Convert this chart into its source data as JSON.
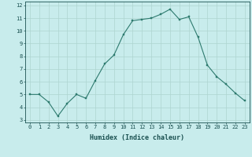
{
  "x": [
    0,
    1,
    2,
    3,
    4,
    5,
    6,
    7,
    8,
    9,
    10,
    11,
    12,
    13,
    14,
    15,
    16,
    17,
    18,
    19,
    20,
    21,
    22,
    23
  ],
  "y": [
    5.0,
    5.0,
    4.4,
    3.3,
    4.3,
    5.0,
    4.7,
    6.1,
    7.4,
    8.1,
    9.7,
    10.8,
    10.9,
    11.0,
    11.3,
    11.7,
    10.9,
    11.1,
    9.5,
    7.3,
    6.4,
    5.8,
    5.1,
    4.5
  ],
  "xlabel": "Humidex (Indice chaleur)",
  "xlim": [
    -0.5,
    23.5
  ],
  "ylim": [
    2.8,
    12.3
  ],
  "yticks": [
    3,
    4,
    5,
    6,
    7,
    8,
    9,
    10,
    11,
    12
  ],
  "xticks": [
    0,
    1,
    2,
    3,
    4,
    5,
    6,
    7,
    8,
    9,
    10,
    11,
    12,
    13,
    14,
    15,
    16,
    17,
    18,
    19,
    20,
    21,
    22,
    23
  ],
  "line_color": "#2d7a6e",
  "marker_color": "#2d7a6e",
  "bg_color": "#c8ecec",
  "grid_color": "#aed4d0",
  "tick_color": "#1a5050",
  "label_color": "#1a5050",
  "font_family": "monospace",
  "tick_fontsize": 5.0,
  "xlabel_fontsize": 6.0
}
